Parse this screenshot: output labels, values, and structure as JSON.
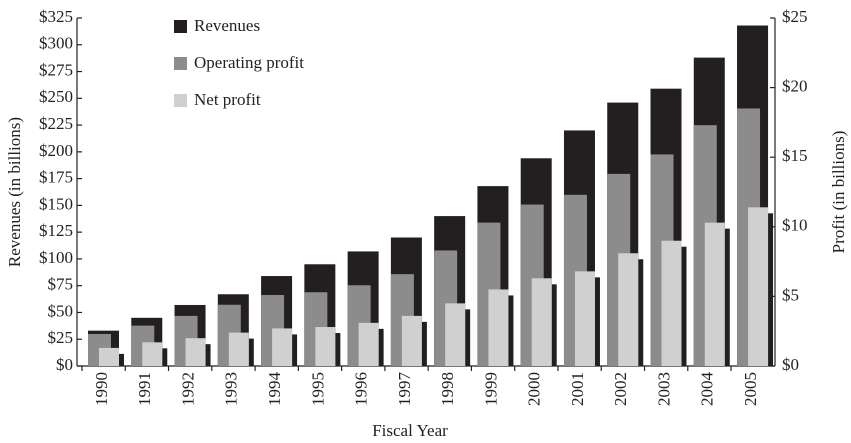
{
  "chart_data": {
    "type": "bar",
    "x_label": "Fiscal Year",
    "y_label": "Revenues (in billions)",
    "y2_label": "Profit (in billions)",
    "categories": [
      "1990",
      "1991",
      "1992",
      "1993",
      "1994",
      "1995",
      "1996",
      "1997",
      "1998",
      "1999",
      "2000",
      "2001",
      "2002",
      "2003",
      "2004",
      "2005"
    ],
    "series": [
      {
        "name": "Revenues",
        "color": "#231f20",
        "values": [
          33,
          45,
          57,
          67,
          84,
          95,
          107,
          120,
          140,
          168,
          194,
          220,
          246,
          259,
          288,
          318
        ]
      },
      {
        "name": "Operating profit",
        "color": "#8c8c8c",
        "axis": "y2",
        "values": [
          2.3,
          2.9,
          3.6,
          4.4,
          5.1,
          5.3,
          5.8,
          6.6,
          8.3,
          10.3,
          11.6,
          12.3,
          13.8,
          15.2,
          17.3,
          18.5
        ]
      },
      {
        "name": "Net profit",
        "color": "#d0d0d0",
        "axis": "y2",
        "values": [
          1.3,
          1.7,
          2.0,
          2.4,
          2.7,
          2.8,
          3.1,
          3.6,
          4.5,
          5.5,
          6.3,
          6.8,
          8.1,
          9.0,
          10.3,
          11.4
        ]
      }
    ],
    "ylim": [
      0,
      325
    ],
    "yticks": [
      {
        "value": 0,
        "label": "$0"
      },
      {
        "value": 25,
        "label": "$25"
      },
      {
        "value": 50,
        "label": "$50"
      },
      {
        "value": 75,
        "label": "$75"
      },
      {
        "value": 100,
        "label": "$100"
      },
      {
        "value": 125,
        "label": "$125"
      },
      {
        "value": 150,
        "label": "$150"
      },
      {
        "value": 175,
        "label": "$175"
      },
      {
        "value": 200,
        "label": "$200"
      },
      {
        "value": 225,
        "label": "$225"
      },
      {
        "value": 250,
        "label": "$250"
      },
      {
        "value": 275,
        "label": "$275"
      },
      {
        "value": 300,
        "label": "$300"
      },
      {
        "value": 325,
        "label": "$325"
      }
    ],
    "y2lim": [
      0,
      25
    ],
    "y2ticks": [
      {
        "value": 0,
        "label": "$0"
      },
      {
        "value": 5,
        "label": "$5"
      },
      {
        "value": 10,
        "label": "$10"
      },
      {
        "value": 15,
        "label": "$15"
      },
      {
        "value": 20,
        "label": "$20"
      },
      {
        "value": 25,
        "label": "$25"
      }
    ],
    "legend": "upper left"
  }
}
